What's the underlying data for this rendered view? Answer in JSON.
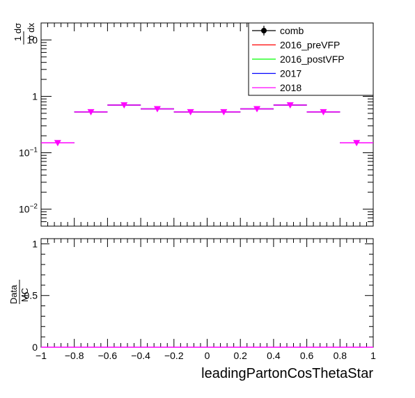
{
  "chart_data": [
    {
      "type": "line",
      "panel": "main",
      "ylabel": {
        "numerator": "1 dσ",
        "denominator": "σ dx"
      },
      "yscale": "log",
      "ylim": [
        0.005,
        20
      ],
      "xlim": [
        -1,
        1
      ],
      "y_ticks": [
        {
          "value": 0.01,
          "base": "10",
          "exp": "−2"
        },
        {
          "value": 0.1,
          "base": "10",
          "exp": "−1"
        },
        {
          "value": 1,
          "base": "1",
          "exp": ""
        },
        {
          "value": 10,
          "base": "10",
          "exp": ""
        }
      ],
      "x_bin_edges": [
        -1.0,
        -0.8,
        -0.6,
        -0.4,
        -0.2,
        0.0,
        0.2,
        0.4,
        0.6,
        0.8,
        1.0
      ],
      "series": [
        {
          "name": "comb",
          "color": "#000000",
          "marker": "circle",
          "values": []
        },
        {
          "name": "2016_preVFP",
          "color": "#ff0000",
          "values": [
            0.15,
            0.53,
            0.7,
            0.6,
            0.53,
            0.53,
            0.6,
            0.7,
            0.53,
            0.15
          ]
        },
        {
          "name": "2016_postVFP",
          "color": "#00ff00",
          "values": [
            0.15,
            0.53,
            0.7,
            0.6,
            0.53,
            0.53,
            0.6,
            0.7,
            0.53,
            0.15
          ]
        },
        {
          "name": "2017",
          "color": "#0000ff",
          "values": [
            0.15,
            0.53,
            0.7,
            0.6,
            0.53,
            0.53,
            0.6,
            0.7,
            0.53,
            0.15
          ]
        },
        {
          "name": "2018",
          "color": "#ff00ff",
          "marker": "triangle-down",
          "values": [
            0.15,
            0.53,
            0.7,
            0.6,
            0.53,
            0.53,
            0.6,
            0.7,
            0.53,
            0.15
          ]
        }
      ],
      "legend": {
        "position": "top-right",
        "entries": [
          "comb",
          "2016_preVFP",
          "2016_postVFP",
          "2017",
          "2018"
        ]
      }
    },
    {
      "type": "line",
      "panel": "ratio",
      "ylabel": {
        "numerator": "Data",
        "denominator": "MC"
      },
      "xlabel": "leadingPartonCosThetaStar",
      "ylim": [
        0,
        1.05
      ],
      "xlim": [
        -1,
        1
      ],
      "y_tick_labels": [
        "0",
        "0.5",
        "1"
      ],
      "x_tick_labels": [
        "−1",
        "−0.8",
        "−0.6",
        "−0.4",
        "−0.2",
        "0",
        "0.2",
        "0.4",
        "0.6",
        "0.8",
        "1"
      ],
      "series": [
        {
          "name": "2018",
          "color": "#ff00ff",
          "values": [
            0,
            0,
            0,
            0,
            0,
            0,
            0,
            0,
            0,
            0
          ]
        }
      ]
    }
  ]
}
